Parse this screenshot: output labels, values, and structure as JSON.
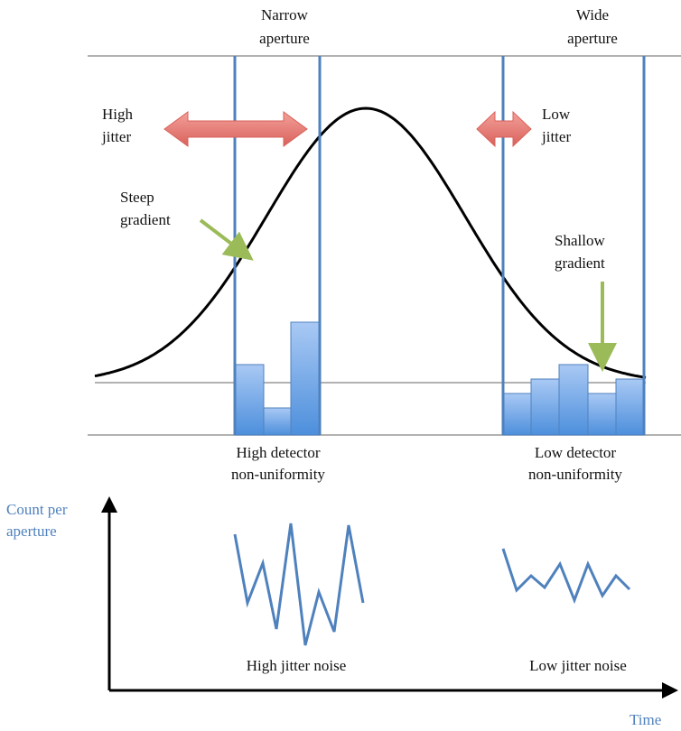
{
  "labels": {
    "narrow_aperture": [
      "Narrow",
      "aperture"
    ],
    "wide_aperture": [
      "Wide",
      "aperture"
    ],
    "high_jitter": [
      "High",
      "jitter"
    ],
    "low_jitter": [
      "Low",
      "jitter"
    ],
    "steep_gradient": [
      "Steep",
      "gradient"
    ],
    "shallow_gradient": [
      "Shallow",
      "gradient"
    ],
    "high_detector": [
      "High detector",
      "non-uniformity"
    ],
    "low_detector": [
      "Low detector",
      "non-uniformity"
    ],
    "y_axis": [
      "Count per",
      "aperture"
    ],
    "high_jitter_noise": "High jitter noise",
    "low_jitter_noise": "Low jitter noise",
    "x_axis": "Time"
  }
}
